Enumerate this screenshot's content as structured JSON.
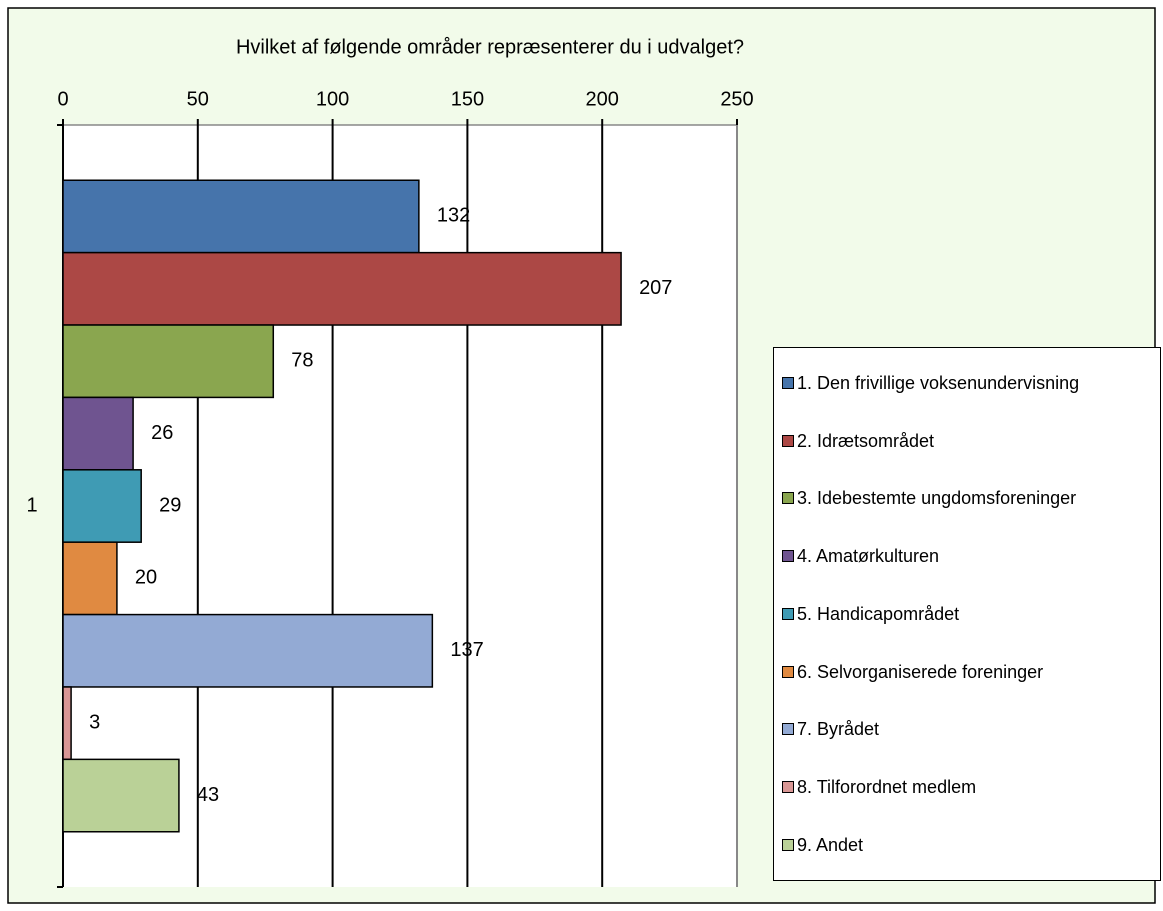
{
  "chart_data": {
    "type": "bar",
    "orientation": "horizontal",
    "title": "Hvilket af følgende områder repræsenterer du i udvalget?",
    "categories": [
      "1"
    ],
    "series": [
      {
        "name": "1. Den frivillige voksenundervisning",
        "color": "#4674ab",
        "values": [
          132
        ]
      },
      {
        "name": "2. Idrætsområdet",
        "color": "#ac4845",
        "values": [
          207
        ]
      },
      {
        "name": "3. Idebestemte ungdomsforeninger",
        "color": "#8aa64f",
        "values": [
          78
        ]
      },
      {
        "name": "4. Amatørkulturen",
        "color": "#6f5490",
        "values": [
          26
        ]
      },
      {
        "name": "5. Handicapområdet",
        "color": "#3f9bb4",
        "values": [
          29
        ]
      },
      {
        "name": "6. Selvorganiserede foreninger",
        "color": "#e08a41",
        "values": [
          20
        ]
      },
      {
        "name": "7. Byrådet",
        "color": "#93aad4",
        "values": [
          137
        ]
      },
      {
        "name": "8. Tilforordnet medlem",
        "color": "#d99795",
        "values": [
          3
        ]
      },
      {
        "name": "9. Andet",
        "color": "#bad197",
        "values": [
          43
        ]
      }
    ],
    "xlim": [
      0,
      250
    ],
    "xticks": [
      0,
      50,
      100,
      150,
      200,
      250
    ],
    "grid": true,
    "legend": "right"
  }
}
